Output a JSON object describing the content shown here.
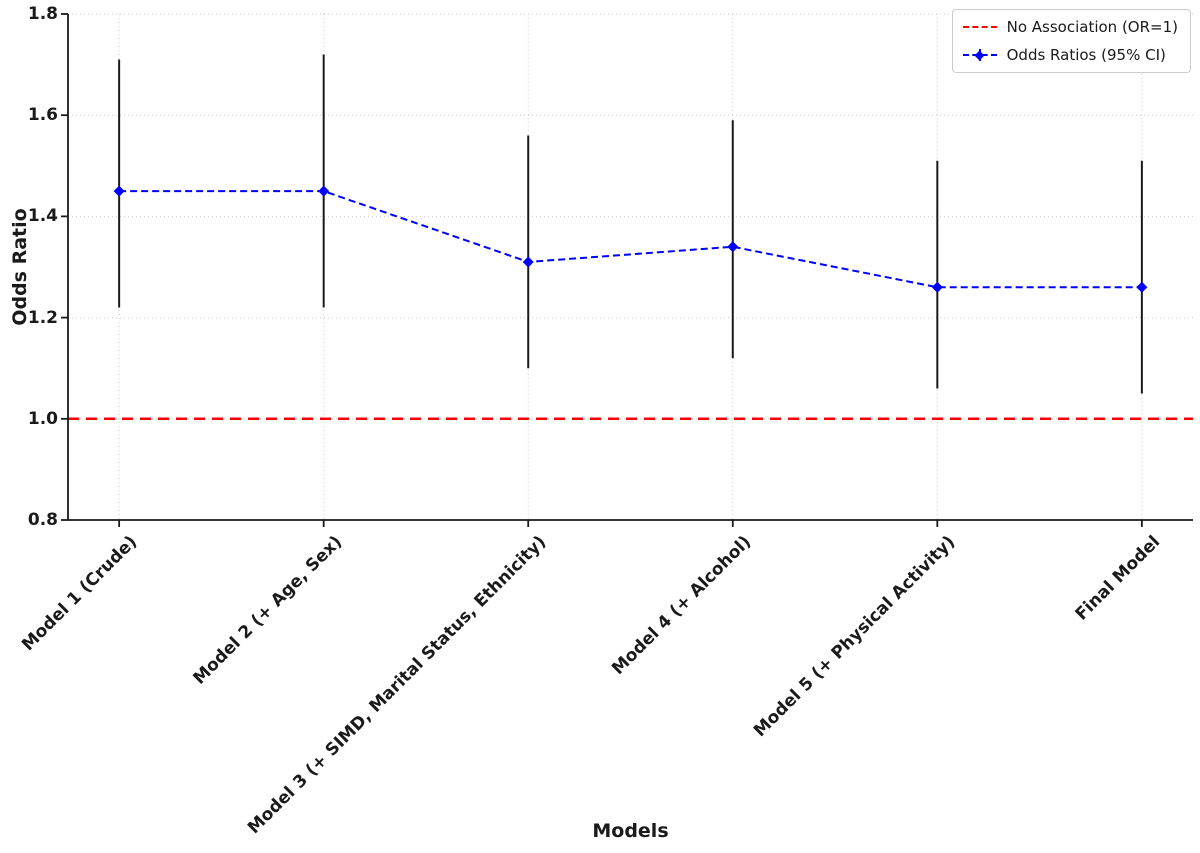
{
  "chart_data": {
    "type": "line",
    "title": "",
    "xlabel": "Models",
    "ylabel": "Odds Ratio",
    "categories": [
      "Model 1 (Crude)",
      "Model 2 (+ Age, Sex)",
      "Model 3 (+ SIMD, Marital Status, Ethnicity)",
      "Model 4 (+ Alcohol)",
      "Model 5 (+ Physical Activity)",
      "Final Model"
    ],
    "series": [
      {
        "name": "Odds Ratios (95% CI)",
        "values": [
          1.45,
          1.45,
          1.31,
          1.34,
          1.26,
          1.26
        ],
        "ci_low": [
          1.22,
          1.22,
          1.1,
          1.12,
          1.06,
          1.05
        ],
        "ci_high": [
          1.71,
          1.72,
          1.56,
          1.59,
          1.51,
          1.51
        ],
        "color": "#0000ff",
        "linestyle": "dashed",
        "marker": "diamond",
        "errorbar_color": "#1a1a1a"
      }
    ],
    "reference_line": {
      "y": 1.0,
      "label": "No Association (OR=1)",
      "color": "#ff0000",
      "linestyle": "dashed"
    },
    "ylim": [
      0.8,
      1.8
    ],
    "yticks": [
      0.8,
      1.0,
      1.2,
      1.4,
      1.6,
      1.8
    ],
    "xlim": [
      -0.25,
      5.25
    ],
    "grid": true,
    "grid_color": "#c8c8c8",
    "legend_position": "upper right",
    "spine_color": "#1a1a1a"
  }
}
